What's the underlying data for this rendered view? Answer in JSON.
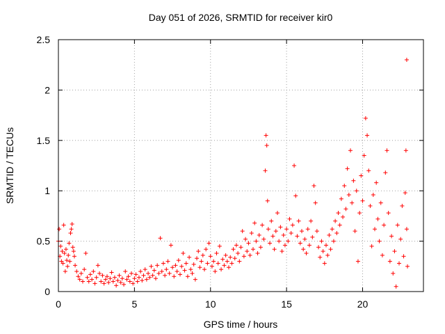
{
  "chart_data": {
    "type": "scatter",
    "title": "Day 051 of 2026, SRMTID for receiver kir0",
    "xlabel": "GPS time / hours",
    "ylabel": "SRMTID / TECUs",
    "xlim": [
      0,
      24
    ],
    "ylim": [
      0,
      2.5
    ],
    "x_ticks": [
      0,
      5,
      10,
      15,
      20
    ],
    "x_tick_labels": [
      "0",
      "5",
      "10",
      "15",
      "20"
    ],
    "y_ticks": [
      0,
      0.5,
      1,
      1.5,
      2,
      2.5
    ],
    "y_tick_labels": [
      "0",
      "0.5",
      "1",
      "1.5",
      "2",
      "2.5"
    ],
    "grid": true,
    "marker": "+",
    "marker_color": "#ff0000",
    "series": [
      {
        "name": "SRMTID",
        "points": [
          [
            0.0,
            0.5
          ],
          [
            0.05,
            0.62
          ],
          [
            0.1,
            0.35
          ],
          [
            0.15,
            0.45
          ],
          [
            0.2,
            0.3
          ],
          [
            0.25,
            0.4
          ],
          [
            0.3,
            0.28
          ],
          [
            0.35,
            0.66
          ],
          [
            0.4,
            0.38
          ],
          [
            0.45,
            0.2
          ],
          [
            0.5,
            0.42
          ],
          [
            0.55,
            0.31
          ],
          [
            0.6,
            0.25
          ],
          [
            0.65,
            0.36
          ],
          [
            0.7,
            0.48
          ],
          [
            0.75,
            0.3
          ],
          [
            0.8,
            0.58
          ],
          [
            0.85,
            0.62
          ],
          [
            0.9,
            0.67
          ],
          [
            0.95,
            0.44
          ],
          [
            1.0,
            0.4
          ],
          [
            1.05,
            0.35
          ],
          [
            1.1,
            0.26
          ],
          [
            1.2,
            0.2
          ],
          [
            1.3,
            0.15
          ],
          [
            1.4,
            0.12
          ],
          [
            1.5,
            0.18
          ],
          [
            1.6,
            0.1
          ],
          [
            1.7,
            0.22
          ],
          [
            1.8,
            0.38
          ],
          [
            1.9,
            0.14
          ],
          [
            2.0,
            0.1
          ],
          [
            2.1,
            0.17
          ],
          [
            2.2,
            0.12
          ],
          [
            2.3,
            0.2
          ],
          [
            2.4,
            0.08
          ],
          [
            2.5,
            0.14
          ],
          [
            2.6,
            0.26
          ],
          [
            2.7,
            0.18
          ],
          [
            2.8,
            0.1
          ],
          [
            2.9,
            0.16
          ],
          [
            3.0,
            0.08
          ],
          [
            3.1,
            0.12
          ],
          [
            3.2,
            0.15
          ],
          [
            3.3,
            0.09
          ],
          [
            3.4,
            0.13
          ],
          [
            3.5,
            0.19
          ],
          [
            3.6,
            0.1
          ],
          [
            3.7,
            0.14
          ],
          [
            3.8,
            0.06
          ],
          [
            3.9,
            0.11
          ],
          [
            4.0,
            0.16
          ],
          [
            4.1,
            0.09
          ],
          [
            4.2,
            0.13
          ],
          [
            4.3,
            0.07
          ],
          [
            4.4,
            0.2
          ],
          [
            4.5,
            0.12
          ],
          [
            4.6,
            0.15
          ],
          [
            4.7,
            0.1
          ],
          [
            4.8,
            0.18
          ],
          [
            4.9,
            0.08
          ],
          [
            5.0,
            0.13
          ],
          [
            5.1,
            0.17
          ],
          [
            5.2,
            0.1
          ],
          [
            5.3,
            0.14
          ],
          [
            5.4,
            0.2
          ],
          [
            5.5,
            0.11
          ],
          [
            5.6,
            0.16
          ],
          [
            5.7,
            0.22
          ],
          [
            5.8,
            0.12
          ],
          [
            5.9,
            0.18
          ],
          [
            6.0,
            0.14
          ],
          [
            6.1,
            0.25
          ],
          [
            6.2,
            0.16
          ],
          [
            6.3,
            0.21
          ],
          [
            6.4,
            0.13
          ],
          [
            6.5,
            0.26
          ],
          [
            6.6,
            0.18
          ],
          [
            6.7,
            0.53
          ],
          [
            6.8,
            0.2
          ],
          [
            6.9,
            0.28
          ],
          [
            7.0,
            0.16
          ],
          [
            7.1,
            0.22
          ],
          [
            7.2,
            0.3
          ],
          [
            7.3,
            0.18
          ],
          [
            7.4,
            0.46
          ],
          [
            7.5,
            0.24
          ],
          [
            7.6,
            0.15
          ],
          [
            7.7,
            0.26
          ],
          [
            7.8,
            0.2
          ],
          [
            7.9,
            0.31
          ],
          [
            8.0,
            0.17
          ],
          [
            8.1,
            0.25
          ],
          [
            8.2,
            0.38
          ],
          [
            8.3,
            0.21
          ],
          [
            8.4,
            0.28
          ],
          [
            8.5,
            0.15
          ],
          [
            8.6,
            0.34
          ],
          [
            8.7,
            0.22
          ],
          [
            8.8,
            0.18
          ],
          [
            8.9,
            0.27
          ],
          [
            9.0,
            0.12
          ],
          [
            9.1,
            0.33
          ],
          [
            9.2,
            0.4
          ],
          [
            9.3,
            0.24
          ],
          [
            9.4,
            0.3
          ],
          [
            9.5,
            0.36
          ],
          [
            9.6,
            0.22
          ],
          [
            9.7,
            0.42
          ],
          [
            9.8,
            0.28
          ],
          [
            9.9,
            0.48
          ],
          [
            10.0,
            0.35
          ],
          [
            10.1,
            0.25
          ],
          [
            10.2,
            0.3
          ],
          [
            10.3,
            0.2
          ],
          [
            10.4,
            0.38
          ],
          [
            10.5,
            0.28
          ],
          [
            10.6,
            0.45
          ],
          [
            10.7,
            0.22
          ],
          [
            10.8,
            0.32
          ],
          [
            10.9,
            0.26
          ],
          [
            11.0,
            0.36
          ],
          [
            11.1,
            0.3
          ],
          [
            11.2,
            0.24
          ],
          [
            11.3,
            0.34
          ],
          [
            11.4,
            0.28
          ],
          [
            11.5,
            0.42
          ],
          [
            11.6,
            0.33
          ],
          [
            11.7,
            0.46
          ],
          [
            11.8,
            0.38
          ],
          [
            11.9,
            0.3
          ],
          [
            12.0,
            0.44
          ],
          [
            12.1,
            0.6
          ],
          [
            12.2,
            0.35
          ],
          [
            12.3,
            0.52
          ],
          [
            12.4,
            0.4
          ],
          [
            12.5,
            0.48
          ],
          [
            12.6,
            0.36
          ],
          [
            12.7,
            0.58
          ],
          [
            12.8,
            0.42
          ],
          [
            12.9,
            0.68
          ],
          [
            13.0,
            0.5
          ],
          [
            13.1,
            0.38
          ],
          [
            13.2,
            0.56
          ],
          [
            13.3,
            0.44
          ],
          [
            13.4,
            0.66
          ],
          [
            13.5,
            0.52
          ],
          [
            13.6,
            1.2
          ],
          [
            13.65,
            1.55
          ],
          [
            13.7,
            1.45
          ],
          [
            13.75,
            0.9
          ],
          [
            13.8,
            0.62
          ],
          [
            13.9,
            0.48
          ],
          [
            14.0,
            0.7
          ],
          [
            14.1,
            0.55
          ],
          [
            14.2,
            0.42
          ],
          [
            14.3,
            0.6
          ],
          [
            14.4,
            0.78
          ],
          [
            14.5,
            0.5
          ],
          [
            14.6,
            0.64
          ],
          [
            14.7,
            0.4
          ],
          [
            14.8,
            0.56
          ],
          [
            14.9,
            0.46
          ],
          [
            15.0,
            0.62
          ],
          [
            15.1,
            0.5
          ],
          [
            15.2,
            0.72
          ],
          [
            15.3,
            0.58
          ],
          [
            15.4,
            0.66
          ],
          [
            15.5,
            1.25
          ],
          [
            15.6,
            0.95
          ],
          [
            15.7,
            0.55
          ],
          [
            15.8,
            0.7
          ],
          [
            15.9,
            0.48
          ],
          [
            16.0,
            0.6
          ],
          [
            16.1,
            0.42
          ],
          [
            16.2,
            0.52
          ],
          [
            16.3,
            0.38
          ],
          [
            16.4,
            0.62
          ],
          [
            16.5,
            0.46
          ],
          [
            16.6,
            0.7
          ],
          [
            16.7,
            0.54
          ],
          [
            16.8,
            1.05
          ],
          [
            16.9,
            0.88
          ],
          [
            17.0,
            0.6
          ],
          [
            17.1,
            0.44
          ],
          [
            17.2,
            0.34
          ],
          [
            17.3,
            0.5
          ],
          [
            17.4,
            0.4
          ],
          [
            17.5,
            0.28
          ],
          [
            17.6,
            0.46
          ],
          [
            17.7,
            0.36
          ],
          [
            17.8,
            0.56
          ],
          [
            17.9,
            0.42
          ],
          [
            18.0,
            0.62
          ],
          [
            18.1,
            0.5
          ],
          [
            18.2,
            0.7
          ],
          [
            18.3,
            0.58
          ],
          [
            18.4,
            0.78
          ],
          [
            18.5,
            0.66
          ],
          [
            18.6,
            0.92
          ],
          [
            18.7,
            0.74
          ],
          [
            18.8,
            1.05
          ],
          [
            18.9,
            0.82
          ],
          [
            19.0,
            1.22
          ],
          [
            19.1,
            0.96
          ],
          [
            19.2,
            1.4
          ],
          [
            19.3,
            0.88
          ],
          [
            19.4,
            1.1
          ],
          [
            19.5,
            0.6
          ],
          [
            19.6,
            1.0
          ],
          [
            19.7,
            0.3
          ],
          [
            19.8,
            0.78
          ],
          [
            19.9,
            1.15
          ],
          [
            20.0,
            0.9
          ],
          [
            20.1,
            1.35
          ],
          [
            20.2,
            1.72
          ],
          [
            20.3,
            1.55
          ],
          [
            20.4,
            1.2
          ],
          [
            20.5,
            0.85
          ],
          [
            20.6,
            0.45
          ],
          [
            20.7,
            0.96
          ],
          [
            20.8,
            0.62
          ],
          [
            20.9,
            1.08
          ],
          [
            21.0,
            0.72
          ],
          [
            21.1,
            0.5
          ],
          [
            21.2,
            0.88
          ],
          [
            21.3,
            0.36
          ],
          [
            21.4,
            0.66
          ],
          [
            21.5,
            1.18
          ],
          [
            21.6,
            1.4
          ],
          [
            21.7,
            0.78
          ],
          [
            21.8,
            0.3
          ],
          [
            21.9,
            0.55
          ],
          [
            22.0,
            0.18
          ],
          [
            22.1,
            0.4
          ],
          [
            22.2,
            0.05
          ],
          [
            22.3,
            0.66
          ],
          [
            22.4,
            0.28
          ],
          [
            22.5,
            0.52
          ],
          [
            22.6,
            0.85
          ],
          [
            22.7,
            0.35
          ],
          [
            22.8,
            0.98
          ],
          [
            22.85,
            1.4
          ],
          [
            22.9,
            0.62
          ],
          [
            22.9,
            2.3
          ],
          [
            22.95,
            0.25
          ]
        ]
      }
    ]
  }
}
